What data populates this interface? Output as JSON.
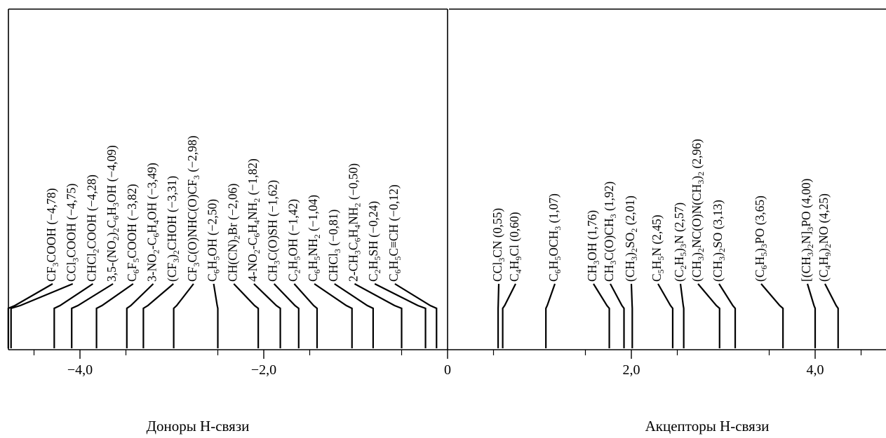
{
  "axis": {
    "tick_labels": [
      "−4,0",
      "−2,0",
      "0",
      "2,0",
      "4,0"
    ]
  },
  "captions": {
    "donors": "Доноры Н-связи",
    "acceptors": "Акцепторы Н-связи"
  },
  "chart_data": {
    "type": "scale",
    "xlim": [
      -4.9,
      4.9
    ],
    "ticks": [
      -4.0,
      -2.0,
      0,
      2.0,
      4.0
    ],
    "donors": [
      {
        "name": "CF3COOH",
        "value": -4.78
      },
      {
        "name": "CCl3COOH",
        "value": -4.75
      },
      {
        "name": "CHCl2COOH",
        "value": -4.28
      },
      {
        "name": "3,5-(NO2)2C6H3OH",
        "value": -4.09
      },
      {
        "name": "C6F5COOH",
        "value": -3.82
      },
      {
        "name": "3-NO2-C6H4OH",
        "value": -3.49
      },
      {
        "name": "(CF3)2CHOH",
        "value": -3.31
      },
      {
        "name": "CF3C(O)NHC(O)CF3",
        "value": -2.98
      },
      {
        "name": "C6H5OH",
        "value": -2.5
      },
      {
        "name": "CH(CN)2Br",
        "value": -2.06
      },
      {
        "name": "4-NO2-C6H4NH2",
        "value": -1.82
      },
      {
        "name": "CH3C(O)SH",
        "value": -1.62
      },
      {
        "name": "C2H5OH",
        "value": -1.42
      },
      {
        "name": "C6H5NH2",
        "value": -1.04
      },
      {
        "name": "CHCl3",
        "value": -0.81
      },
      {
        "name": "2-CH3C6H4NH2",
        "value": -0.5
      },
      {
        "name": "C2H5SH",
        "value": -0.24
      },
      {
        "name": "C6H5C≡CH",
        "value": -0.12
      }
    ],
    "acceptors": [
      {
        "name": "CCl3CN",
        "value": 0.55
      },
      {
        "name": "C4H9Cl",
        "value": 0.6
      },
      {
        "name": "C6H5OCH3",
        "value": 1.07
      },
      {
        "name": "CH3OH",
        "value": 1.76
      },
      {
        "name": "CH3C(O)CH3",
        "value": 1.92
      },
      {
        "name": "(CH3)2SO2",
        "value": 2.01
      },
      {
        "name": "C5H5N",
        "value": 2.45
      },
      {
        "name": "(C2H5)3N",
        "value": 2.57
      },
      {
        "name": "(CH3)2NC(O)N(CH3)2",
        "value": 2.96
      },
      {
        "name": "(CH3)2SO",
        "value": 3.13
      },
      {
        "name": "(C6H5)3PO",
        "value": 3.65
      },
      {
        "name": "[(CH3)2N]3PO",
        "value": 4.0
      },
      {
        "name": "(C4H9)2NO",
        "value": 4.25
      }
    ]
  }
}
